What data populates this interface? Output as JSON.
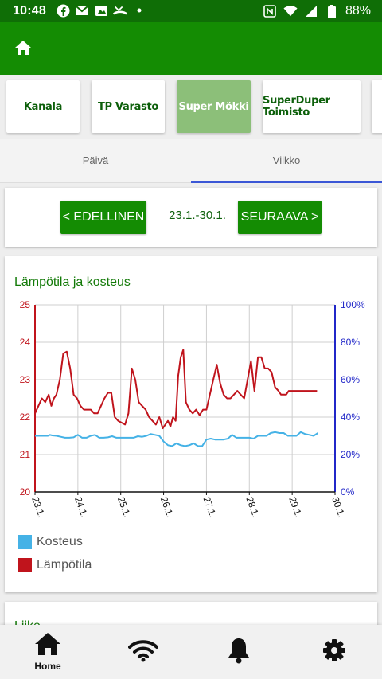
{
  "status_bar": {
    "time": "10:48",
    "battery": "88%",
    "left_icons": [
      "facebook-icon",
      "gmail-icon",
      "photo-icon",
      "missed-call-icon",
      "dot-icon"
    ],
    "right_icons": [
      "nfc-icon",
      "wifi-icon",
      "signal-icon",
      "battery-icon"
    ]
  },
  "app_bar": {
    "home_icon": "home-icon",
    "color": "#148c03"
  },
  "sites": [
    {
      "label": "Kanala",
      "active": false
    },
    {
      "label": "TP Varasto",
      "active": false
    },
    {
      "label": "Super Mökki",
      "active": true
    },
    {
      "label": "SuperDuper Toimisto",
      "active": false
    }
  ],
  "tabs": [
    {
      "label": "Päivä",
      "active": false
    },
    {
      "label": "Viikko",
      "active": true
    }
  ],
  "period_nav": {
    "prev_label": "< EDELLINEN",
    "range": "23.1.-30.1.",
    "next_label": "SEURAAVA >"
  },
  "chart_card": {
    "title": "Lämpötila ja kosteus"
  },
  "chart_data": {
    "type": "line",
    "title": "Lämpötila ja kosteus",
    "categories": [
      "23.1.",
      "24.1.",
      "25.1.",
      "26.1.",
      "27.1.",
      "28.1.",
      "29.1.",
      "30.1."
    ],
    "left_axis": {
      "ticks": [
        "20",
        "21",
        "22",
        "23",
        "24",
        "25"
      ],
      "range": [
        20,
        25
      ],
      "color": "#c0141c"
    },
    "right_axis": {
      "ticks": [
        "0%",
        "20%",
        "40%",
        "60%",
        "80%",
        "100%"
      ],
      "range": [
        0,
        100
      ],
      "color": "#2127c8"
    },
    "grid": true,
    "series": [
      {
        "name": "Kosteus",
        "color": "#45b2e6",
        "axis": "right",
        "x": [
          0,
          0.05,
          0.1,
          0.15,
          0.2,
          0.25,
          0.3,
          0.35,
          0.4,
          0.5,
          0.6,
          0.7,
          0.8,
          0.9,
          1.0,
          1.1,
          1.2,
          1.3,
          1.4,
          1.5,
          1.6,
          1.7,
          1.8,
          1.9,
          2.0,
          2.1,
          2.2,
          2.3,
          2.4,
          2.5,
          2.6,
          2.7,
          2.8,
          2.9,
          3.0,
          3.1,
          3.2,
          3.3,
          3.4,
          3.5,
          3.6,
          3.7,
          3.8,
          3.9,
          4.0,
          4.1,
          4.2,
          4.3,
          4.4,
          4.5,
          4.6,
          4.7,
          4.8,
          4.9,
          5.0,
          5.1,
          5.2,
          5.3,
          5.4,
          5.5,
          5.6,
          5.7,
          5.8,
          5.9,
          6.0,
          6.1,
          6.2,
          6.3,
          6.4,
          6.5,
          6.6
        ],
        "values": [
          30,
          30,
          30,
          30,
          30,
          30,
          30,
          30.5,
          30.2,
          30,
          29.5,
          29,
          29,
          29.2,
          30.5,
          29,
          29,
          30,
          30.5,
          29,
          29,
          29.2,
          29.8,
          29,
          29,
          29,
          29,
          29,
          29.8,
          29.5,
          30,
          31,
          30.5,
          30,
          27,
          25,
          24.5,
          26,
          25,
          24.5,
          25,
          26,
          24.5,
          24.5,
          28,
          28.5,
          28,
          28,
          28,
          28.5,
          30.5,
          29,
          29,
          29,
          29,
          28.5,
          30,
          30,
          30,
          31.5,
          32,
          31.5,
          31.5,
          30,
          30,
          30,
          32,
          31,
          30.5,
          30,
          31.5
        ]
      },
      {
        "name": "Lämpötila",
        "color": "#c0141c",
        "axis": "left",
        "x": [
          0,
          0.08,
          0.16,
          0.24,
          0.32,
          0.38,
          0.44,
          0.5,
          0.58,
          0.66,
          0.74,
          0.82,
          0.9,
          0.98,
          1.06,
          1.14,
          1.22,
          1.3,
          1.38,
          1.46,
          1.54,
          1.62,
          1.7,
          1.78,
          1.86,
          1.94,
          2.02,
          2.1,
          2.18,
          2.26,
          2.34,
          2.42,
          2.5,
          2.58,
          2.66,
          2.74,
          2.82,
          2.9,
          2.98,
          3.04,
          3.1,
          3.16,
          3.22,
          3.28,
          3.34,
          3.4,
          3.46,
          3.52,
          3.6,
          3.68,
          3.76,
          3.84,
          3.92,
          4.0,
          4.08,
          4.16,
          4.24,
          4.32,
          4.4,
          4.48,
          4.56,
          4.64,
          4.72,
          4.8,
          4.88,
          4.96,
          5.04,
          5.12,
          5.2,
          5.28,
          5.36,
          5.44,
          5.52,
          5.6,
          5.68,
          5.74,
          5.8,
          5.86,
          5.92,
          5.98,
          6.04,
          6.1,
          6.16,
          6.22,
          6.28,
          6.34,
          6.4,
          6.46,
          6.52,
          6.58
        ],
        "values": [
          22.1,
          22.3,
          22.5,
          22.4,
          22.6,
          22.3,
          22.5,
          22.6,
          23.0,
          23.7,
          23.75,
          23.3,
          22.6,
          22.5,
          22.3,
          22.2,
          22.2,
          22.2,
          22.1,
          22.1,
          22.3,
          22.5,
          22.65,
          22.65,
          22.0,
          21.9,
          21.85,
          21.8,
          22.1,
          23.3,
          23.0,
          22.4,
          22.3,
          22.2,
          22.0,
          21.9,
          21.8,
          22.0,
          21.7,
          21.8,
          21.9,
          21.75,
          22.0,
          21.9,
          23.1,
          23.6,
          23.8,
          22.4,
          22.2,
          22.1,
          22.2,
          22.05,
          22.2,
          22.2,
          22.6,
          23.0,
          23.4,
          22.9,
          22.6,
          22.5,
          22.5,
          22.6,
          22.7,
          22.6,
          22.5,
          23.0,
          23.5,
          22.7,
          23.6,
          23.6,
          23.3,
          23.3,
          23.2,
          22.8,
          22.7,
          22.6,
          22.6,
          22.6,
          22.7,
          22.7,
          22.7,
          22.7,
          22.7,
          22.7,
          22.7,
          22.7,
          22.7,
          22.7,
          22.7,
          22.7
        ]
      }
    ]
  },
  "next_card": {
    "title": "Liike"
  },
  "bottom_nav": [
    {
      "icon": "home-icon",
      "label": "Home"
    },
    {
      "icon": "wifi-icon",
      "label": ""
    },
    {
      "icon": "bell-icon",
      "label": ""
    },
    {
      "icon": "gear-icon",
      "label": ""
    }
  ]
}
